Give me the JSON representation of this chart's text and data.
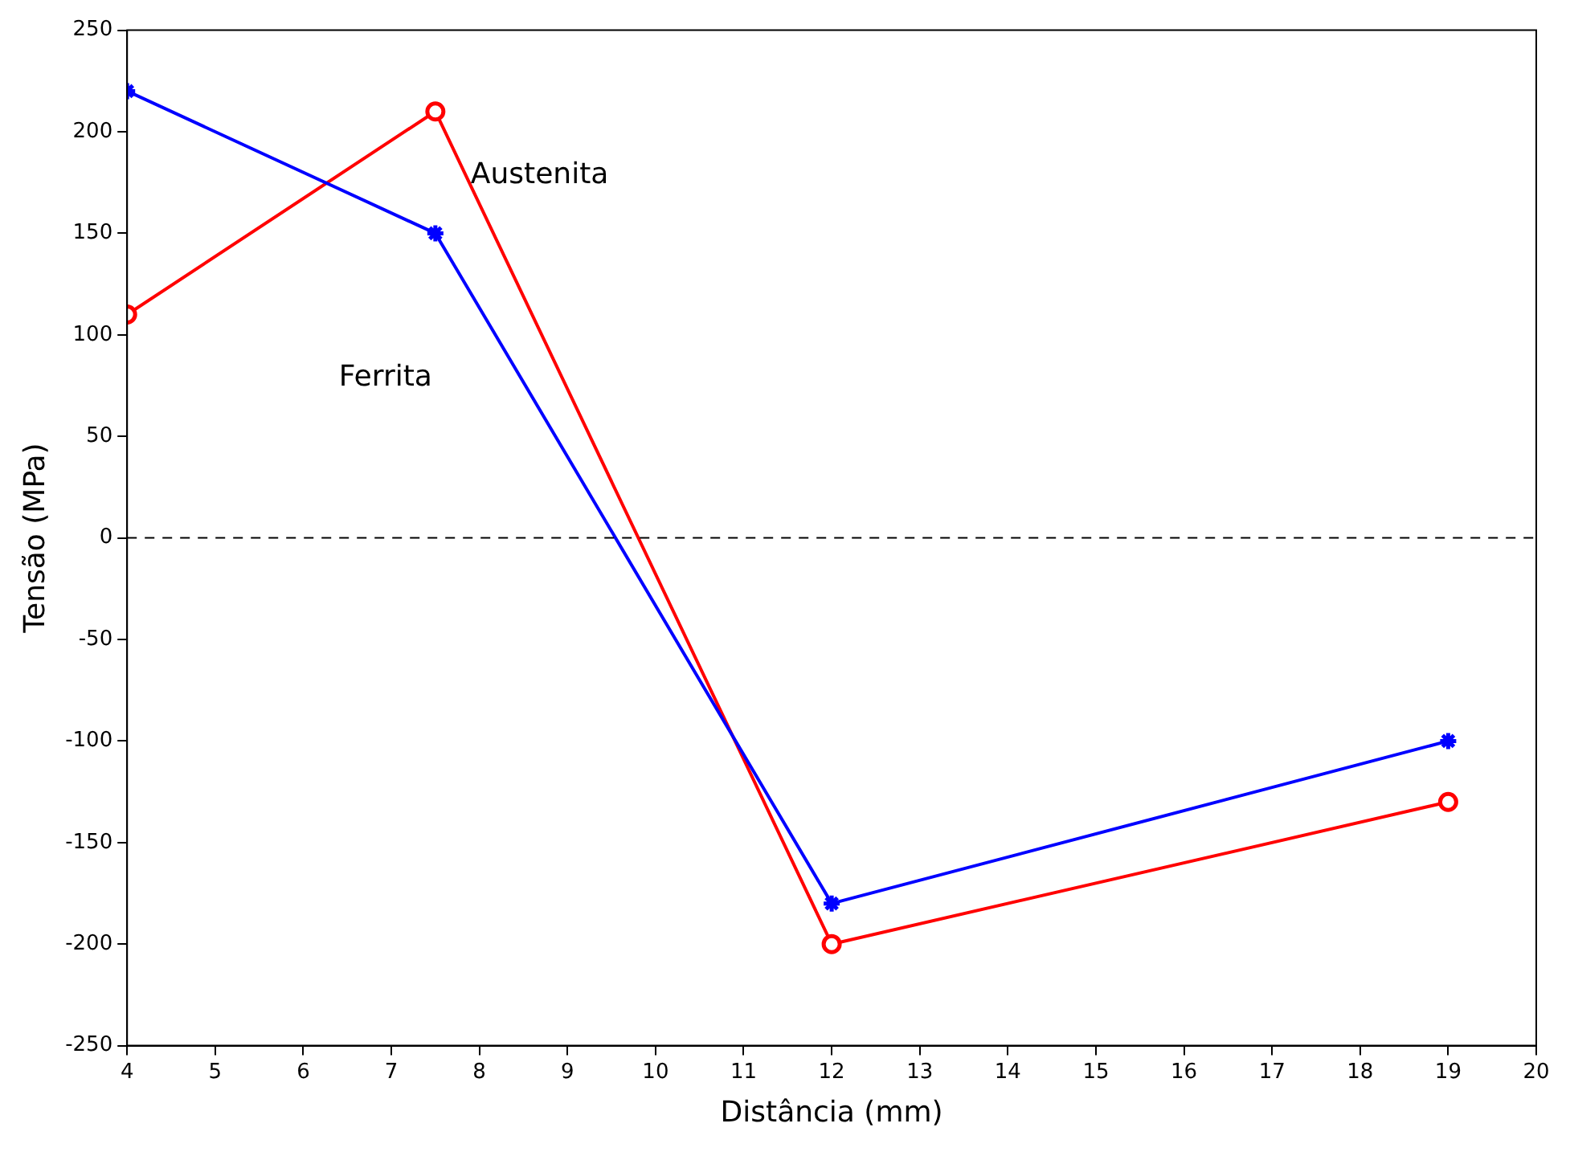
{
  "chart_data": {
    "type": "line",
    "xlabel": "Distância (mm)",
    "ylabel": "Tensão (MPa)",
    "xlim": [
      4,
      20
    ],
    "xticks": [
      4,
      5,
      6,
      7,
      8,
      9,
      10,
      11,
      12,
      13,
      14,
      15,
      16,
      17,
      18,
      19,
      20
    ],
    "ylim": [
      -250,
      250
    ],
    "yticks": [
      -250,
      -200,
      -150,
      -100,
      -50,
      0,
      50,
      100,
      150,
      200,
      250
    ],
    "grid": false,
    "line_style": "solid",
    "x": [
      4,
      7.5,
      12,
      19
    ],
    "series": [
      {
        "name": "Ferrita",
        "color": "#0000ff",
        "marker": "cross",
        "values": [
          220,
          150,
          -180,
          -100
        ]
      },
      {
        "name": "Austenita",
        "color": "#ff0000",
        "marker": "circle",
        "values": [
          110,
          210,
          -200,
          -130
        ]
      }
    ],
    "ref_lines": [
      {
        "axis": "y",
        "value": 0,
        "color": "#000000",
        "line_style": "dashed"
      }
    ]
  }
}
